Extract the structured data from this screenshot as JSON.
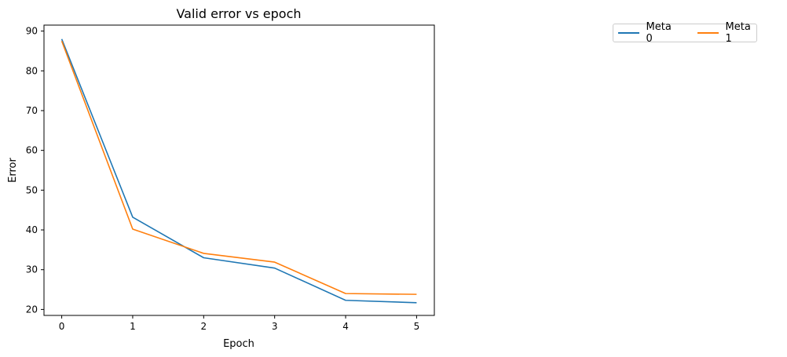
{
  "chart_data": {
    "type": "line",
    "title": "Valid error vs epoch",
    "xlabel": "Epoch",
    "ylabel": "Error",
    "x": [
      0,
      1,
      2,
      3,
      4,
      5
    ],
    "xticks": [
      "0",
      "1",
      "2",
      "3",
      "4",
      "5"
    ],
    "yticks": [
      "20",
      "30",
      "40",
      "50",
      "60",
      "70",
      "80",
      "90"
    ],
    "xlim": [
      -0.25,
      5.25
    ],
    "ylim": [
      18.5,
      91.5
    ],
    "grid": false,
    "legend_placement": "outside-top-right",
    "series": [
      {
        "name": "Meta 0",
        "color": "#1f77b4",
        "values": [
          88.0,
          43.2,
          33.0,
          30.4,
          22.3,
          21.7
        ]
      },
      {
        "name": "Meta 1",
        "color": "#ff7f0e",
        "values": [
          87.5,
          40.2,
          34.1,
          31.9,
          24.0,
          23.8
        ]
      }
    ]
  }
}
